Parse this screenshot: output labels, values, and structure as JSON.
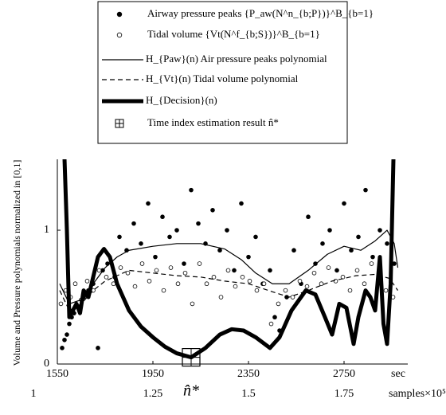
{
  "chart_data": {
    "type": "line",
    "ylabel": "Volume and Pressure polynomials normalized in [0,1]",
    "xlabel": "sec",
    "x2label": "samples×10⁵",
    "xlim": [
      1550,
      2980
    ],
    "xticks": [
      1550,
      1950,
      2350,
      2750
    ],
    "x2lim": [
      1,
      1.89375
    ],
    "x2ticks": [
      1,
      1.25,
      1.5,
      1.75
    ],
    "ylim": [
      0,
      1.53
    ],
    "yticks": [
      0,
      1
    ],
    "annotation": {
      "text": "n̂*",
      "x": 2110
    },
    "estimate": {
      "name": "Time index estimation result n̂*",
      "x": 2110,
      "y": 0.05
    },
    "series": [
      {
        "name": "Airway pressure peaks {P_aw(N^n_{b;P})}^B_{b=1}",
        "marker": "filled",
        "color": "#000",
        "x": [
          1570,
          1580,
          1590,
          1600,
          1610,
          1620,
          1640,
          1660,
          1680,
          1700,
          1720,
          1740,
          1760,
          1790,
          1810,
          1840,
          1870,
          1900,
          1930,
          1960,
          1990,
          2020,
          2050,
          2080,
          2110,
          2140,
          2170,
          2200,
          2230,
          2260,
          2290,
          2320,
          2350,
          2380,
          2410,
          2440,
          2460,
          2480,
          2510,
          2540,
          2570,
          2600,
          2630,
          2660,
          2690,
          2720,
          2750,
          2780,
          2810,
          2840,
          2870,
          2900,
          2930,
          2960
        ],
        "values": [
          0.12,
          0.18,
          0.22,
          0.3,
          0.35,
          0.38,
          0.42,
          0.5,
          0.55,
          0.6,
          0.12,
          0.7,
          0.75,
          0.65,
          0.95,
          0.85,
          1.05,
          0.9,
          1.2,
          0.8,
          1.1,
          0.95,
          1.0,
          0.75,
          1.3,
          1.05,
          0.9,
          1.15,
          0.85,
          1.0,
          0.7,
          1.2,
          0.8,
          0.95,
          0.6,
          0.7,
          0.35,
          0.25,
          0.5,
          0.85,
          0.6,
          1.1,
          0.75,
          0.9,
          1.0,
          0.7,
          1.2,
          0.85,
          0.95,
          1.3,
          0.8,
          1.0,
          0.9,
          0.75
        ]
      },
      {
        "name": "Tidal volume {Vt(N^f_{b;S})}^B_{b=1}",
        "marker": "open",
        "color": "#000",
        "x": [
          1565,
          1585,
          1605,
          1625,
          1650,
          1675,
          1700,
          1725,
          1755,
          1785,
          1815,
          1845,
          1875,
          1905,
          1935,
          1965,
          1995,
          2025,
          2055,
          2085,
          2115,
          2145,
          2175,
          2205,
          2235,
          2265,
          2295,
          2325,
          2355,
          2385,
          2415,
          2445,
          2475,
          2505,
          2535,
          2565,
          2595,
          2625,
          2655,
          2685,
          2715,
          2745,
          2775,
          2805,
          2835,
          2865,
          2895,
          2925,
          2955
        ],
        "values": [
          0.45,
          0.55,
          0.5,
          0.6,
          0.48,
          0.62,
          0.55,
          0.7,
          0.65,
          0.6,
          0.72,
          0.68,
          0.58,
          0.75,
          0.62,
          0.7,
          0.55,
          0.72,
          0.6,
          0.68,
          0.45,
          0.75,
          0.6,
          0.65,
          0.5,
          0.7,
          0.58,
          0.65,
          0.62,
          0.55,
          0.6,
          0.3,
          0.45,
          0.55,
          0.5,
          0.62,
          0.58,
          0.68,
          0.6,
          0.72,
          0.62,
          0.65,
          0.55,
          0.7,
          0.6,
          0.75,
          0.62,
          0.55,
          0.5
        ]
      },
      {
        "name": "H_{Paw}(n) Air pressure peaks polynomial",
        "marker": "none",
        "width": 1.2,
        "dash": "",
        "color": "#000",
        "x": [
          1560,
          1600,
          1650,
          1700,
          1750,
          1800,
          1850,
          1950,
          2050,
          2150,
          2250,
          2320,
          2380,
          2450,
          2520,
          2600,
          2680,
          2750,
          2820,
          2880,
          2930,
          2960,
          2975
        ],
        "values": [
          0.6,
          0.45,
          0.48,
          0.6,
          0.72,
          0.8,
          0.85,
          0.88,
          0.9,
          0.9,
          0.86,
          0.78,
          0.68,
          0.6,
          0.6,
          0.7,
          0.82,
          0.88,
          0.85,
          0.92,
          1.0,
          0.9,
          0.72
        ]
      },
      {
        "name": "H_{Vt}(n) Tidal volume polynomial",
        "marker": "none",
        "width": 1.2,
        "dash": "6 4",
        "color": "#000",
        "x": [
          1560,
          1600,
          1650,
          1700,
          1750,
          1800,
          1850,
          1950,
          2050,
          2150,
          2250,
          2350,
          2450,
          2520,
          2600,
          2700,
          2800,
          2880,
          2940,
          2975
        ],
        "values": [
          0.55,
          0.4,
          0.45,
          0.55,
          0.62,
          0.66,
          0.7,
          0.68,
          0.66,
          0.65,
          0.62,
          0.6,
          0.54,
          0.5,
          0.55,
          0.62,
          0.66,
          0.67,
          0.64,
          0.55
        ]
      },
      {
        "name": "H_{Decision}(n)",
        "marker": "none",
        "width": 5,
        "dash": "",
        "color": "#000",
        "x": [
          1575,
          1590,
          1600,
          1615,
          1630,
          1645,
          1660,
          1680,
          1700,
          1720,
          1745,
          1770,
          1800,
          1850,
          1900,
          1950,
          2000,
          2050,
          2110,
          2170,
          2230,
          2280,
          2330,
          2380,
          2440,
          2480,
          2530,
          2590,
          2630,
          2670,
          2700,
          2730,
          2760,
          2790,
          2810,
          2840,
          2860,
          2880,
          2900,
          2915,
          2930,
          2945,
          2960
        ],
        "values": [
          1.8,
          1.0,
          0.35,
          0.4,
          0.45,
          0.38,
          0.55,
          0.5,
          0.65,
          0.8,
          0.86,
          0.8,
          0.6,
          0.4,
          0.28,
          0.2,
          0.13,
          0.08,
          0.05,
          0.12,
          0.22,
          0.26,
          0.25,
          0.2,
          0.12,
          0.2,
          0.4,
          0.55,
          0.52,
          0.35,
          0.22,
          0.45,
          0.42,
          0.15,
          0.35,
          0.55,
          0.5,
          0.4,
          0.8,
          0.3,
          0.15,
          0.6,
          1.8
        ]
      }
    ]
  }
}
